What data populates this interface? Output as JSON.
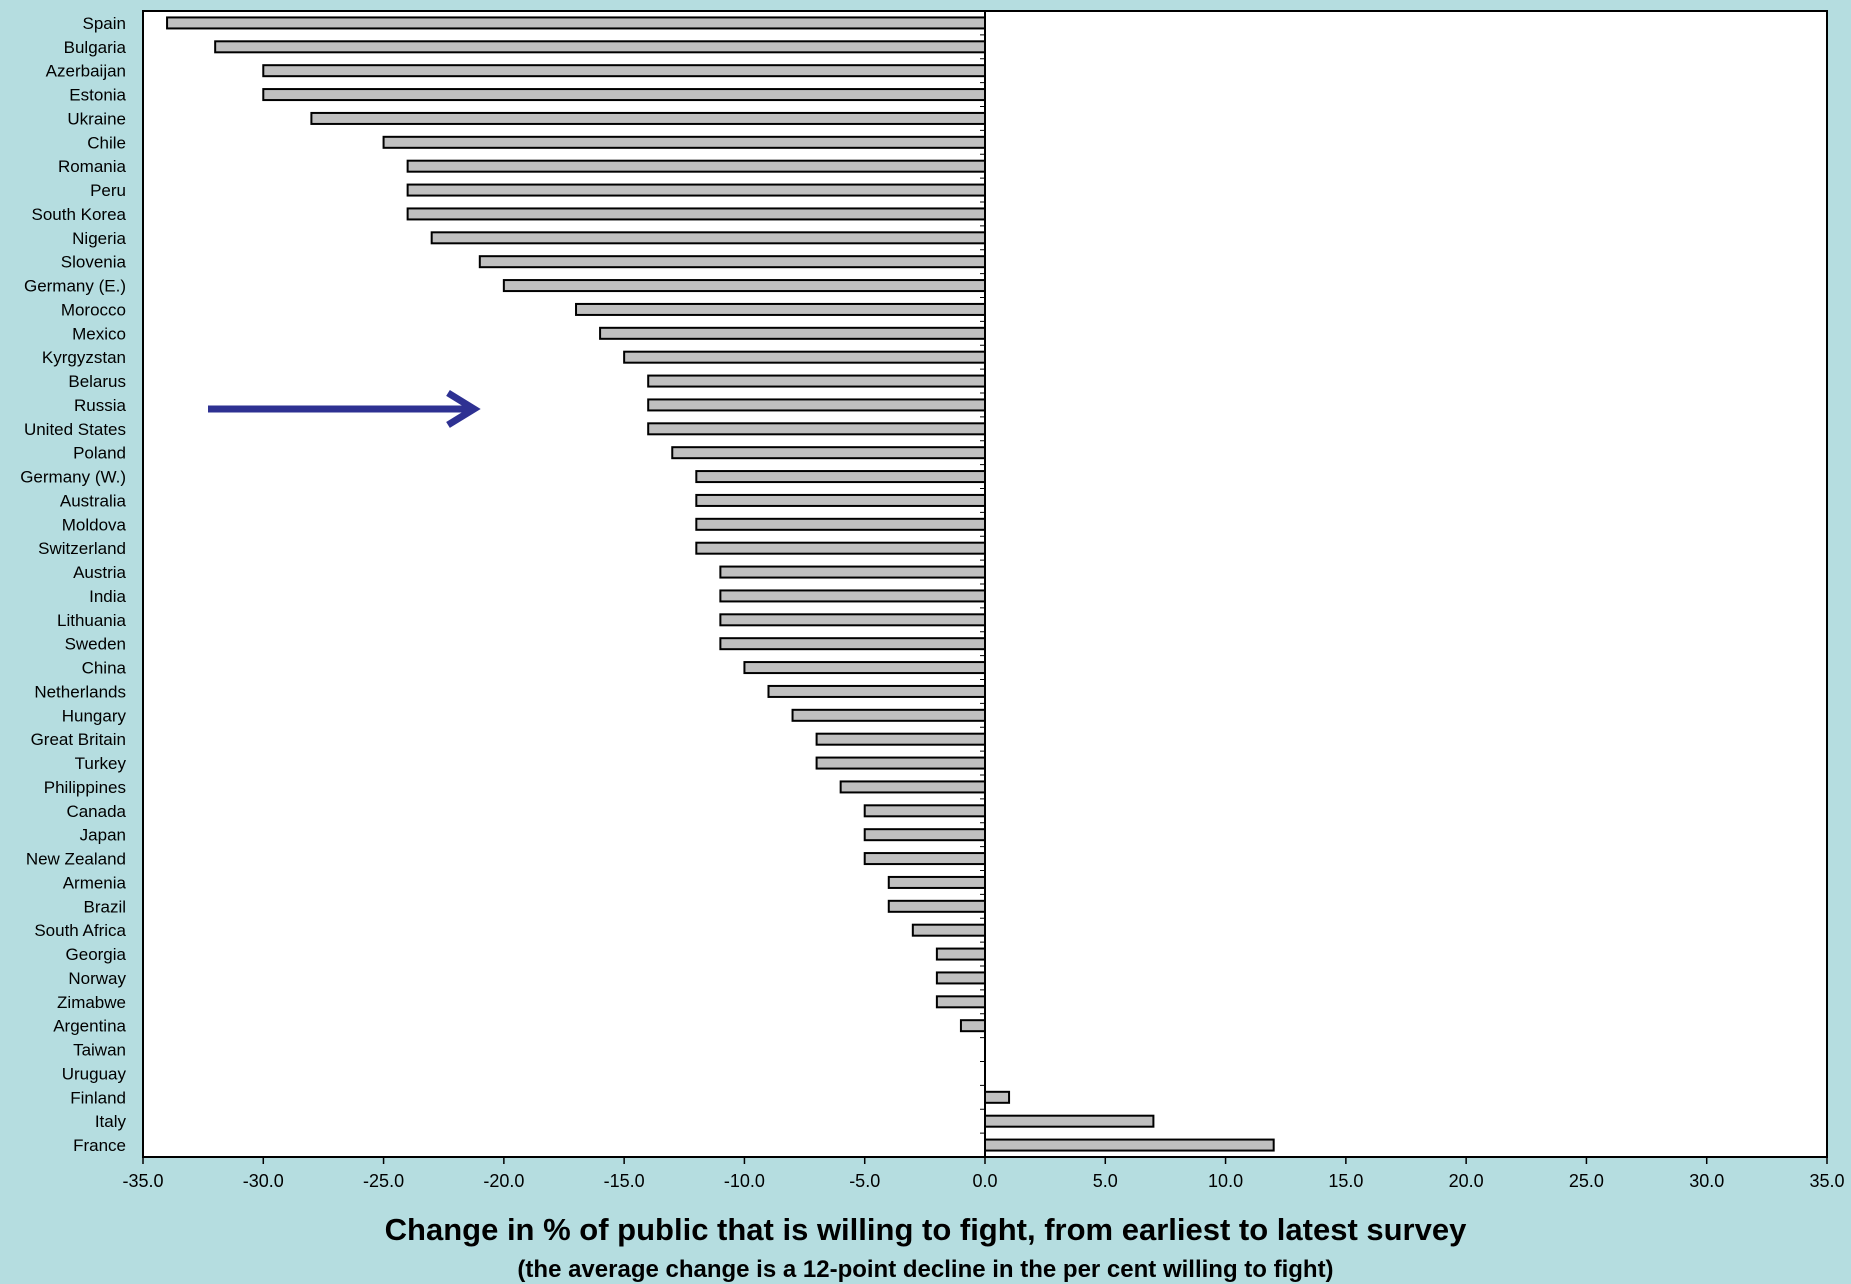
{
  "chart_data": {
    "type": "bar",
    "orientation": "horizontal",
    "categories": [
      "Spain",
      "Bulgaria",
      "Azerbaijan",
      "Estonia",
      "Ukraine",
      "Chile",
      "Romania",
      "Peru",
      "South Korea",
      "Nigeria",
      "Slovenia",
      "Germany (E.)",
      "Morocco",
      "Mexico",
      "Kyrgyzstan",
      "Belarus",
      "Russia",
      "United States",
      "Poland",
      "Germany (W.)",
      "Australia",
      "Moldova",
      "Switzerland",
      "Austria",
      "India",
      "Lithuania",
      "Sweden",
      "China",
      "Netherlands",
      "Hungary",
      "Great Britain",
      "Turkey",
      "Philippines",
      "Canada",
      "Japan",
      "New Zealand",
      "Armenia",
      "Brazil",
      "South Africa",
      "Georgia",
      "Norway",
      "Zimabwe",
      "Argentina",
      "Taiwan",
      "Uruguay",
      "Finland",
      "Italy",
      "France"
    ],
    "values": [
      -34,
      -32,
      -30,
      -30,
      -28,
      -25,
      -24,
      -24,
      -24,
      -23,
      -21,
      -20,
      -17,
      -16,
      -15,
      -14,
      -14,
      -14,
      -13,
      -12,
      -12,
      -12,
      -12,
      -11,
      -11,
      -11,
      -11,
      -10,
      -9,
      -8,
      -7,
      -7,
      -6,
      -5,
      -5,
      -5,
      -4,
      -4,
      -3,
      -2,
      -2,
      -2,
      -1,
      0,
      0,
      1,
      7,
      12
    ],
    "xlim": [
      -35,
      35
    ],
    "x_ticks": [
      "-35.0",
      "-30.0",
      "-25.0",
      "-20.0",
      "-15.0",
      "-10.0",
      "-5.0",
      "0.0",
      "5.0",
      "10.0",
      "15.0",
      "20.0",
      "25.0",
      "30.0",
      "35.0"
    ],
    "title": "Change in % of public that is willing to fight, from earliest to latest survey",
    "subtitle": "(the average change is a 12-point decline in the per cent willing  to fight)",
    "annotation": {
      "type": "arrow",
      "points_to": "Russia"
    },
    "grid": false,
    "colors": {
      "background": "#b5dde0",
      "plot_area": "#ffffff",
      "bar_fill": "#c0c0c0",
      "bar_stroke": "#000000",
      "arrow": "#2e3192"
    }
  }
}
